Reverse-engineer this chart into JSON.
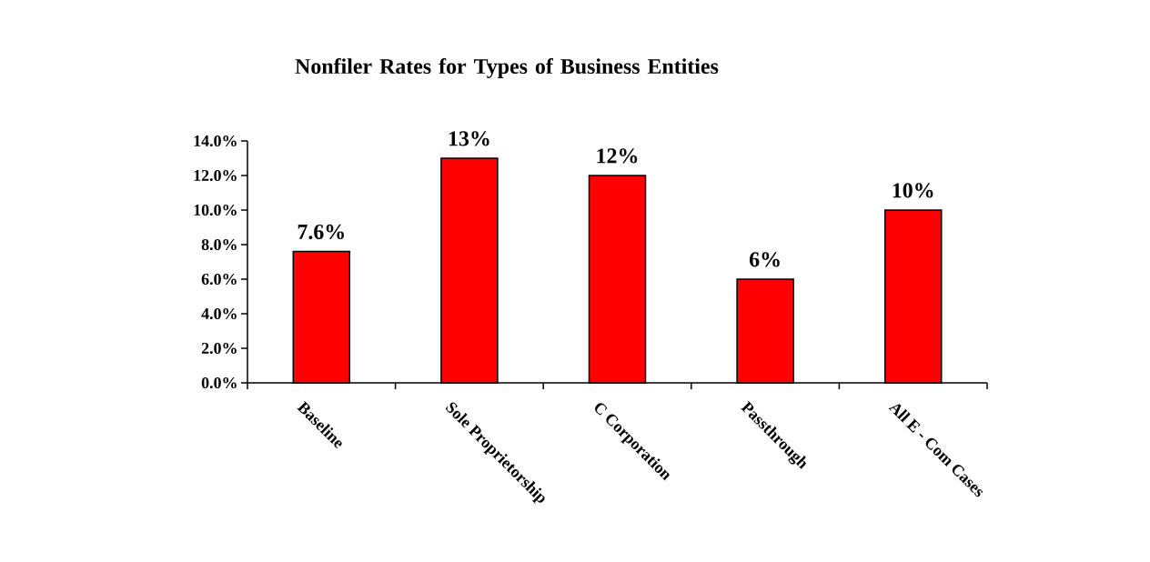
{
  "chart_data": {
    "type": "bar",
    "title": "Nonfiler Rates for Types of Business Entities",
    "categories": [
      "Baseline",
      "Sole Proprietorship",
      "C Corporation",
      "Passthrough",
      "All E - Com Cases"
    ],
    "values": [
      7.6,
      13,
      12,
      6,
      10
    ],
    "value_labels": [
      "7.6%",
      "13%",
      "12%",
      "6%",
      "10%"
    ],
    "color": "#ff0000",
    "ylim": [
      0,
      14
    ],
    "yticks": [
      {
        "value": 0,
        "label": "0.0%"
      },
      {
        "value": 2,
        "label": "2.0%"
      },
      {
        "value": 4,
        "label": "4.0%"
      },
      {
        "value": 6,
        "label": "6.0%"
      },
      {
        "value": 8,
        "label": "8.0%"
      },
      {
        "value": 10,
        "label": "10.0%"
      },
      {
        "value": 12,
        "label": "12.0%"
      },
      {
        "value": 14,
        "label": "14.0%"
      }
    ]
  }
}
